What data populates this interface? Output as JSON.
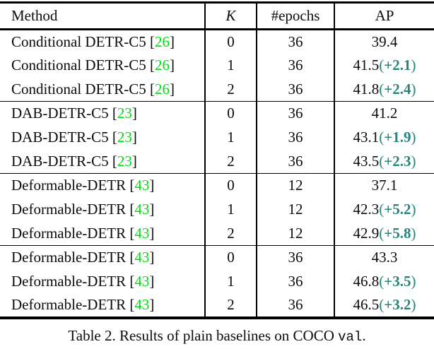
{
  "colors": {
    "citation_green": "#00dd12",
    "gain_teal": "#26857c",
    "rule_black": "#000000"
  },
  "table": {
    "headers": [
      "Method",
      "K",
      "#epochs",
      "AP"
    ],
    "rows": [
      {
        "method": "Conditional DETR-C5",
        "cite": "26",
        "k": "0",
        "epochs": "36",
        "ap": "39.4",
        "gain": "",
        "group_start": false
      },
      {
        "method": "Conditional DETR-C5",
        "cite": "26",
        "k": "1",
        "epochs": "36",
        "ap": "41.5",
        "gain": "+2.1",
        "group_start": false
      },
      {
        "method": "Conditional DETR-C5",
        "cite": "26",
        "k": "2",
        "epochs": "36",
        "ap": "41.8",
        "gain": "+2.4",
        "group_start": false
      },
      {
        "method": "DAB-DETR-C5",
        "cite": "23",
        "k": "0",
        "epochs": "36",
        "ap": "41.2",
        "gain": "",
        "group_start": true
      },
      {
        "method": "DAB-DETR-C5",
        "cite": "23",
        "k": "1",
        "epochs": "36",
        "ap": "43.1",
        "gain": "+1.9",
        "group_start": false
      },
      {
        "method": "DAB-DETR-C5",
        "cite": "23",
        "k": "2",
        "epochs": "36",
        "ap": "43.5",
        "gain": "+2.3",
        "group_start": false
      },
      {
        "method": "Deformable-DETR",
        "cite": "43",
        "k": "0",
        "epochs": "12",
        "ap": "37.1",
        "gain": "",
        "group_start": true
      },
      {
        "method": "Deformable-DETR",
        "cite": "43",
        "k": "1",
        "epochs": "12",
        "ap": "42.3",
        "gain": "+5.2",
        "group_start": false
      },
      {
        "method": "Deformable-DETR",
        "cite": "43",
        "k": "2",
        "epochs": "12",
        "ap": "42.9",
        "gain": "+5.8",
        "group_start": false
      },
      {
        "method": "Deformable-DETR",
        "cite": "43",
        "k": "0",
        "epochs": "36",
        "ap": "43.3",
        "gain": "",
        "group_start": true
      },
      {
        "method": "Deformable-DETR",
        "cite": "43",
        "k": "1",
        "epochs": "36",
        "ap": "46.8",
        "gain": "+3.5",
        "group_start": false
      },
      {
        "method": "Deformable-DETR",
        "cite": "43",
        "k": "2",
        "epochs": "36",
        "ap": "46.5",
        "gain": "+3.2",
        "group_start": false
      }
    ]
  },
  "caption": {
    "prefix": "Table 2. Results of plain baselines on COCO ",
    "code": "val",
    "suffix": "."
  }
}
